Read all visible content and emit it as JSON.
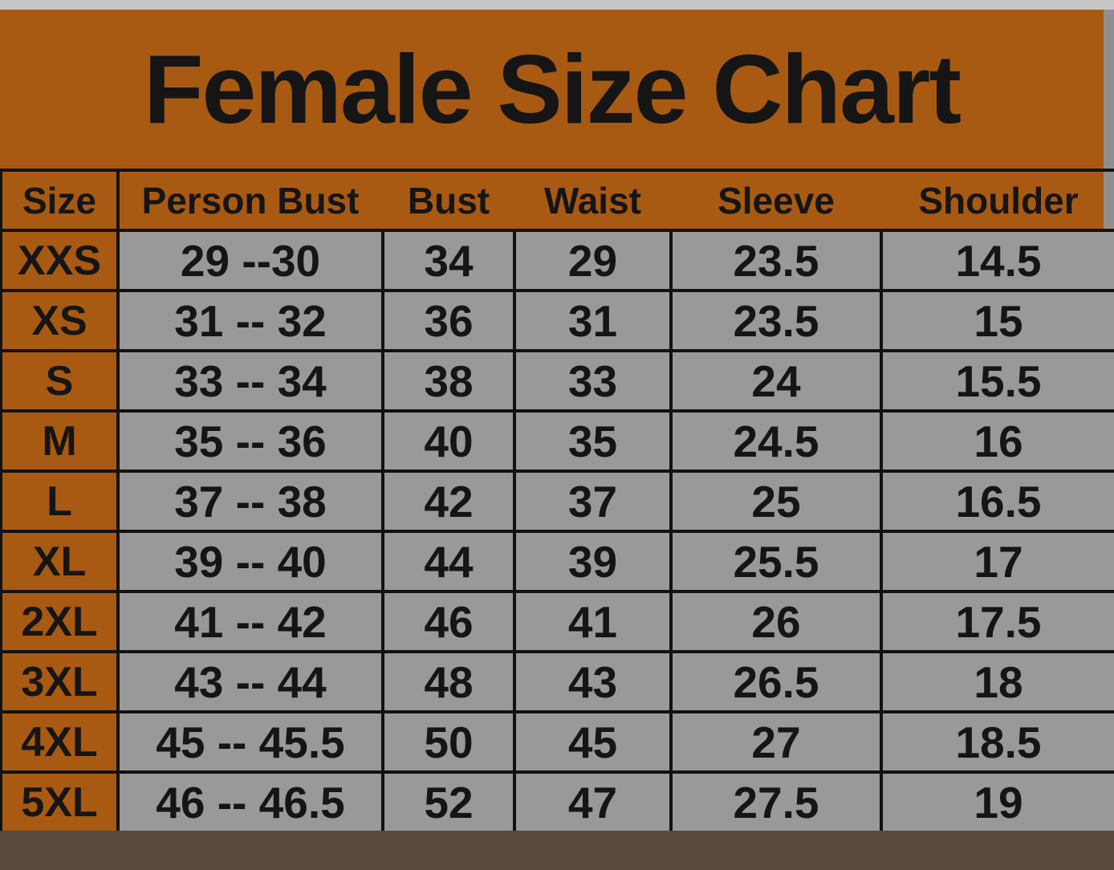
{
  "chart_data": {
    "type": "table",
    "title": "Female Size Chart",
    "columns": [
      "Size",
      "Person Bust",
      "Bust",
      "Waist",
      "Sleeve",
      "Shoulder"
    ],
    "rows": [
      [
        "XXS",
        "29 --30",
        "34",
        "29",
        "23.5",
        "14.5"
      ],
      [
        "XS",
        "31 -- 32",
        "36",
        "31",
        "23.5",
        "15"
      ],
      [
        "S",
        "33 -- 34",
        "38",
        "33",
        "24",
        "15.5"
      ],
      [
        "M",
        "35 -- 36",
        "40",
        "35",
        "24.5",
        "16"
      ],
      [
        "L",
        "37 -- 38",
        "42",
        "37",
        "25",
        "16.5"
      ],
      [
        "XL",
        "39 -- 40",
        "44",
        "39",
        "25.5",
        "17"
      ],
      [
        "2XL",
        "41 -- 42",
        "46",
        "41",
        "26",
        "17.5"
      ],
      [
        "3XL",
        "43 -- 44",
        "48",
        "43",
        "26.5",
        "18"
      ],
      [
        "4XL",
        "45 -- 45.5",
        "50",
        "45",
        "27",
        "18.5"
      ],
      [
        "5XL",
        "46 -- 46.5",
        "52",
        "47",
        "27.5",
        "19"
      ]
    ],
    "layout_hints": {
      "header_background": "orange",
      "size_column_background": "orange",
      "data_cell_background": "gray",
      "grid": "on"
    }
  },
  "colors": {
    "banner_orange": "#a85a12",
    "cell_gray": "#999999",
    "right_strip_gray": "#8f8f8f",
    "top_strip_gray": "#c7c7c7",
    "bottom_strip_brown": "#584a3c",
    "grid_black": "#121212",
    "text_black": "#151515"
  }
}
